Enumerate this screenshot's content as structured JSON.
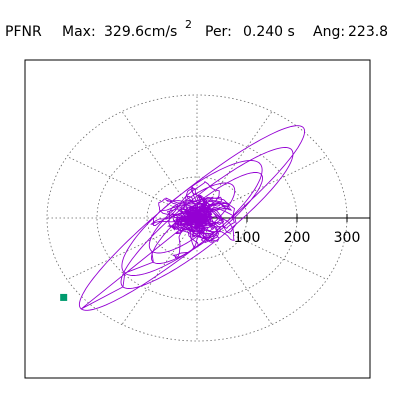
{
  "chart_data": {
    "type": "scatter",
    "title": {
      "station": "PFNR",
      "max_label": "Max:",
      "max_value": "329.6",
      "max_unit": "cm/s",
      "max_unit_exp": "2",
      "per_label": "Per:",
      "per_value": "0.240 s",
      "ang_label": "Ang:",
      "ang_value": "223.8"
    },
    "peak_value": 329.6,
    "peak_angle_deg": 223.8,
    "radial_ticks": [
      100,
      200,
      300
    ],
    "radial_tick_labels": [
      "100",
      "200",
      "300"
    ],
    "grid_rings": [
      100,
      200,
      300
    ],
    "grid_spoke_step_deg": 30,
    "grid": true,
    "grid_style": "dotted",
    "axis_direction": "east",
    "trace_color": "#9400d3",
    "marker_color": "#009b6e",
    "marker_shape": "square",
    "trace_description": "2D horizontal acceleration orbit; dense core near origin with elongated loops along the NE–SW diagonal, peak toward SW"
  }
}
